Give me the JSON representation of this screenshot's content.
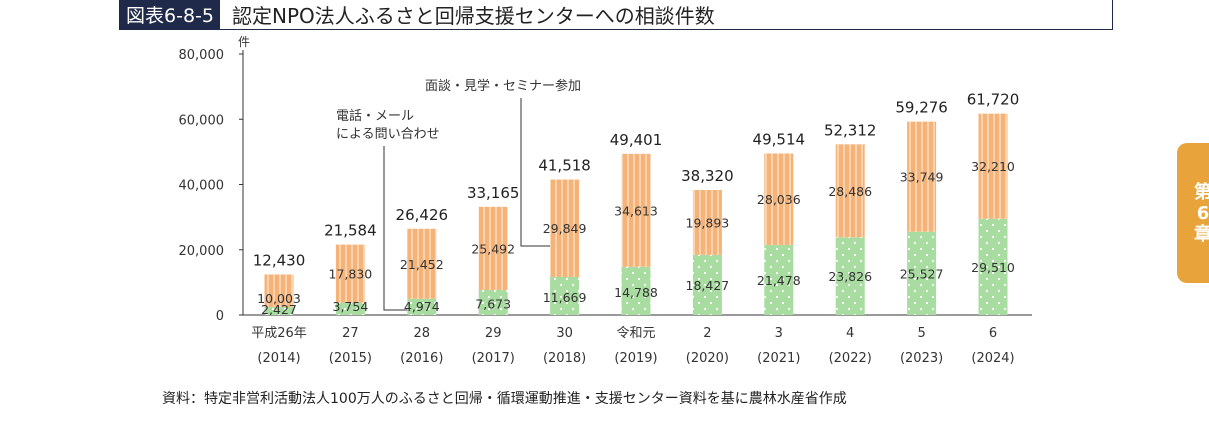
{
  "header": {
    "label": "図表6-8-5",
    "title": "認定NPO法人ふるさと回帰支援センターへの相談件数"
  },
  "side_tab": {
    "chars": [
      "第",
      "6",
      "章"
    ]
  },
  "source": "資料：特定非営利活動法人100万人のふるさと回帰・循環運動推進・支援センター資料を基に農林水産省作成",
  "annotations": {
    "phone": [
      "電話・メール",
      "による問い合わせ"
    ],
    "interview": "面談・見学・セミナー参加"
  },
  "colors": {
    "bottom_fill": "#a8dca0",
    "top_fill": "#f5b37a",
    "top_stripe": "#fbd4ad",
    "axis": "#333333"
  },
  "chart_data": {
    "type": "bar",
    "stacked": true,
    "y_unit": "件",
    "ylim": [
      0,
      80000
    ],
    "y_ticks": [
      0,
      20000,
      40000,
      60000,
      80000
    ],
    "y_tick_labels": [
      "0",
      "20,000",
      "40,000",
      "60,000",
      "80,000"
    ],
    "categories": [
      "平成26年",
      "27",
      "28",
      "29",
      "30",
      "令和元",
      "2",
      "3",
      "4",
      "5",
      "6"
    ],
    "years": [
      "(2014)",
      "(2015)",
      "(2016)",
      "(2017)",
      "(2018)",
      "(2019)",
      "(2020)",
      "(2021)",
      "(2022)",
      "(2023)",
      "(2024)"
    ],
    "totals": [
      12430,
      21584,
      26426,
      33165,
      41518,
      49401,
      38320,
      49514,
      52312,
      59276,
      61720
    ],
    "series": [
      {
        "values": [
          2427,
          3754,
          4974,
          7673,
          11669,
          14788,
          18427,
          21478,
          23826,
          25527,
          29510
        ]
      },
      {
        "values": [
          10003,
          17830,
          21452,
          25492,
          29849,
          34613,
          19893,
          28036,
          28486,
          33749,
          32210
        ]
      }
    ]
  }
}
